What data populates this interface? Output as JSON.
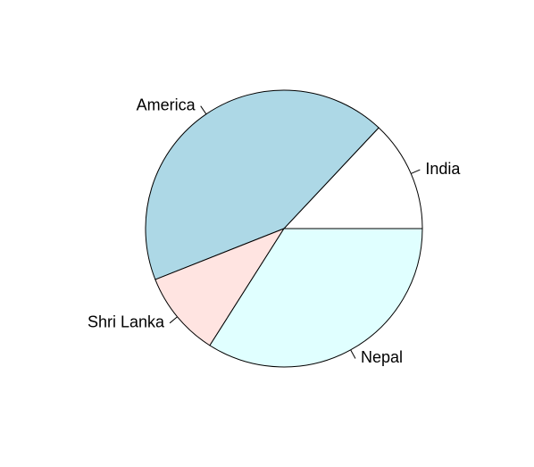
{
  "chart_data": {
    "type": "pie",
    "title": "",
    "slices": [
      {
        "label": "India",
        "value": 13,
        "color": "#ffffff"
      },
      {
        "label": "America",
        "value": 43,
        "color": "#add8e6"
      },
      {
        "label": "Shri Lanka",
        "value": 10,
        "color": "#ffe4e1"
      },
      {
        "label": "Nepal",
        "value": 34,
        "color": "#e0ffff"
      }
    ],
    "start": "3 o'clock",
    "direction": "counterclockwise",
    "legend": "none"
  }
}
